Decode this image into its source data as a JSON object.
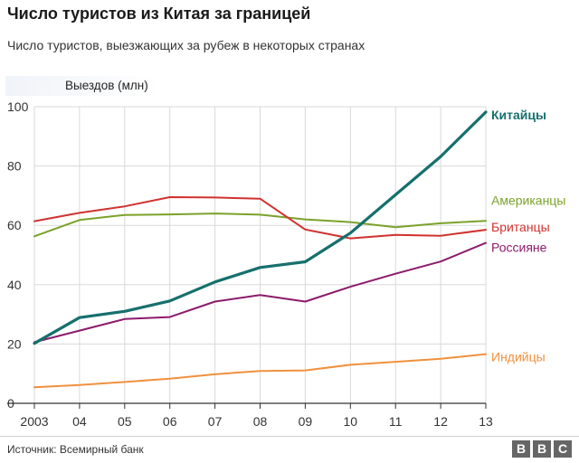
{
  "title": "Число туристов из Китая за границей",
  "subtitle": "Число туристов, выезжающих за рубеж в некоторых странах",
  "source": "Источник: Всемирный банк",
  "logo": [
    "B",
    "B",
    "C"
  ],
  "chart_data": {
    "type": "line",
    "ylabel": "Выездов (млн)",
    "ylim": [
      0,
      100
    ],
    "yticks": [
      "0",
      "20",
      "40",
      "60",
      "80",
      "100"
    ],
    "xlim": [
      2003,
      2013
    ],
    "x": [
      2003,
      2004,
      2005,
      2006,
      2007,
      2008,
      2009,
      2010,
      2011,
      2012,
      2013
    ],
    "xticks": [
      "2003",
      "04",
      "05",
      "06",
      "07",
      "08",
      "09",
      "10",
      "11",
      "12",
      "13"
    ],
    "grid": true,
    "series": [
      {
        "name": "Американцы",
        "color": "#7aa22a",
        "values": [
          56.3,
          61.8,
          63.5,
          63.7,
          64.0,
          63.6,
          62.0,
          61.1,
          59.4,
          60.7,
          61.5
        ]
      },
      {
        "name": "Британцы",
        "color": "#d0322f",
        "values": [
          61.4,
          64.2,
          66.4,
          69.5,
          69.4,
          69.0,
          58.6,
          55.6,
          56.8,
          56.5,
          58.5
        ]
      },
      {
        "name": "Россияне",
        "color": "#8c1b6b",
        "values": [
          20.6,
          24.5,
          28.4,
          29.1,
          34.3,
          36.5,
          34.3,
          39.3,
          43.7,
          47.8,
          54.1
        ]
      },
      {
        "name": "Китайцы",
        "color": "#16706d",
        "values": [
          20.2,
          28.9,
          31.0,
          34.5,
          40.9,
          45.8,
          47.7,
          57.4,
          70.3,
          83.2,
          98.2
        ]
      },
      {
        "name": "Индийцы",
        "color": "#f0913e",
        "values": [
          5.4,
          6.2,
          7.2,
          8.3,
          9.8,
          10.9,
          11.1,
          13.0,
          14.0,
          15.0,
          16.6
        ]
      }
    ]
  }
}
